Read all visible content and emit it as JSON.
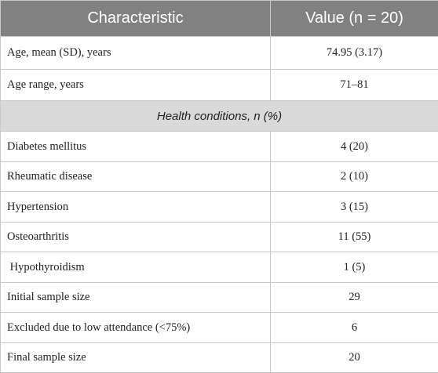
{
  "table": {
    "header": [
      "Characteristic",
      "Value (n = 20)"
    ],
    "rows": [
      [
        "Age, mean (SD), years",
        "74.95 (3.17)"
      ],
      [
        "Age range, years",
        "71–81"
      ],
      [
        "Health conditions, n (%)"
      ],
      [
        "Diabetes mellitus",
        "4 (20)"
      ],
      [
        "Rheumatic disease",
        "2 (10)"
      ],
      [
        "Hypertension",
        "3 (15)"
      ],
      [
        "Osteoarthritis",
        "11 (55)"
      ],
      [
        " Hypothyroidism",
        "1 (5)"
      ],
      [
        "Initial sample size",
        "29"
      ],
      [
        "Excluded due to low attendance (<75%)",
        "6"
      ],
      [
        "Final sample size",
        "20"
      ]
    ]
  }
}
